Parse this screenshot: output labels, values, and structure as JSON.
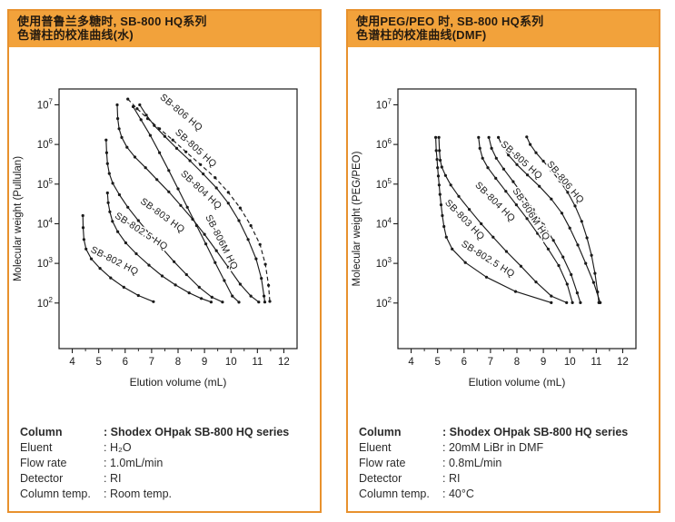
{
  "panels": [
    {
      "title_line1": "使用普鲁兰多糖时, SB-800 HQ系列",
      "title_line2": "色谱柱的校准曲线(水)",
      "specs": {
        "rows": [
          {
            "label": "Column",
            "value": "Shodex OHpak SB-800 HQ series",
            "bold": true
          },
          {
            "label": "Eluent",
            "value": "H₂O",
            "bold": false
          },
          {
            "label": "Flow rate",
            "value": "1.0mL/min",
            "bold": false
          },
          {
            "label": "Detector",
            "value": "RI",
            "bold": false
          },
          {
            "label": "Column temp.",
            "value": "Room temp.",
            "bold": false
          }
        ]
      }
    },
    {
      "title_line1": "使用PEG/PEO 时, SB-800 HQ系列",
      "title_line2": "色谱柱的校准曲线(DMF)",
      "specs": {
        "rows": [
          {
            "label": "Column",
            "value": "Shodex OHpak SB-800 HQ series",
            "bold": true
          },
          {
            "label": "Eluent",
            "value": "20mM LiBr in DMF",
            "bold": false
          },
          {
            "label": "Flow rate",
            "value": "0.8mL/min",
            "bold": false
          },
          {
            "label": "Detector",
            "value": "RI",
            "bold": false
          },
          {
            "label": "Column temp.",
            "value": "40°C",
            "bold": false
          }
        ]
      }
    }
  ],
  "colors": {
    "panel_border": "#e8912d",
    "header_bg": "#f2a23b",
    "ink": "#1a1a1a"
  },
  "chart_data": [
    {
      "type": "line",
      "title": "Calibration curves of SB-800 HQ series (Pullulan, water)",
      "xlabel": "Elution volume (mL)",
      "ylabel": "Molecular weight (Pullulan)",
      "xlim": [
        3.5,
        12.5
      ],
      "x_ticks": [
        4,
        5,
        6,
        7,
        8,
        9,
        10,
        11,
        12
      ],
      "x_minor_step": 0.5,
      "ylog_lim": [
        0.85,
        7.4
      ],
      "y_tick_exponents": [
        2,
        3,
        4,
        5,
        6,
        7
      ],
      "grid": false,
      "series": [
        {
          "name": "SB-802 HQ",
          "dashed": false,
          "label_x": 5.55,
          "label_logy": 3.0,
          "label_rot": 27,
          "points": [
            [
              4.4,
              16000
            ],
            [
              4.41,
              8000
            ],
            [
              4.44,
              4000
            ],
            [
              4.52,
              2300
            ],
            [
              4.72,
              1300
            ],
            [
              5.05,
              750
            ],
            [
              5.45,
              430
            ],
            [
              5.95,
              250
            ],
            [
              6.5,
              155
            ],
            [
              7.07,
              108
            ]
          ]
        },
        {
          "name": "SB-802.5 HQ",
          "dashed": false,
          "label_x": 6.55,
          "label_logy": 3.75,
          "label_rot": 33,
          "points": [
            [
              5.33,
              60000
            ],
            [
              5.36,
              34000
            ],
            [
              5.42,
              20000
            ],
            [
              5.52,
              11500
            ],
            [
              5.72,
              6300
            ],
            [
              6.02,
              3300
            ],
            [
              6.42,
              1750
            ],
            [
              6.9,
              900
            ],
            [
              7.4,
              480
            ],
            [
              7.9,
              285
            ],
            [
              8.42,
              180
            ],
            [
              8.88,
              130
            ],
            [
              9.25,
              106
            ]
          ]
        },
        {
          "name": "SB-803 HQ",
          "dashed": false,
          "label_x": 7.35,
          "label_logy": 4.15,
          "label_rot": 36,
          "points": [
            [
              5.28,
              1300000
            ],
            [
              5.3,
              620000
            ],
            [
              5.33,
              330000
            ],
            [
              5.4,
              185000
            ],
            [
              5.53,
              105000
            ],
            [
              5.78,
              54000
            ],
            [
              6.1,
              26000
            ],
            [
              6.5,
              12000
            ],
            [
              6.95,
              5300
            ],
            [
              7.4,
              2400
            ],
            [
              7.85,
              1100
            ],
            [
              8.32,
              520
            ],
            [
              8.8,
              250
            ],
            [
              9.28,
              140
            ],
            [
              9.68,
              106
            ]
          ]
        },
        {
          "name": "SB-804 HQ",
          "dashed": false,
          "label_x": 8.8,
          "label_logy": 4.8,
          "label_rot": 43,
          "points": [
            [
              5.7,
              10000000
            ],
            [
              5.72,
              4500000
            ],
            [
              5.77,
              2500000
            ],
            [
              5.87,
              1500000
            ],
            [
              6.07,
              850000
            ],
            [
              6.37,
              480000
            ],
            [
              6.77,
              260000
            ],
            [
              7.2,
              130000
            ],
            [
              7.65,
              64000
            ],
            [
              8.1,
              29000
            ],
            [
              8.55,
              13000
            ],
            [
              9.0,
              5400
            ],
            [
              9.45,
              2100
            ],
            [
              9.9,
              800
            ],
            [
              10.35,
              300
            ],
            [
              10.75,
              150
            ],
            [
              11.05,
              106
            ]
          ]
        },
        {
          "name": "SB-805 HQ",
          "dashed": false,
          "label_x": 8.6,
          "label_logy": 5.85,
          "label_rot": 42,
          "points": [
            [
              6.55,
              10000000
            ],
            [
              6.8,
              5500000
            ],
            [
              7.1,
              3000000
            ],
            [
              7.5,
              1600000
            ],
            [
              7.95,
              800000
            ],
            [
              8.45,
              390000
            ],
            [
              8.95,
              180000
            ],
            [
              9.45,
              80000
            ],
            [
              9.9,
              33000
            ],
            [
              10.3,
              12000
            ],
            [
              10.65,
              4000
            ],
            [
              10.95,
              1300
            ],
            [
              11.15,
              420
            ],
            [
              11.25,
              150
            ],
            [
              11.28,
              106
            ]
          ]
        },
        {
          "name": "SB-806 HQ",
          "dashed": true,
          "label_x": 8.05,
          "label_logy": 6.75,
          "label_rot": 40,
          "points": [
            [
              6.1,
              14000000
            ],
            [
              6.45,
              8000000
            ],
            [
              6.85,
              4500000
            ],
            [
              7.3,
              2500000
            ],
            [
              7.8,
              1300000
            ],
            [
              8.3,
              650000
            ],
            [
              8.85,
              310000
            ],
            [
              9.4,
              145000
            ],
            [
              9.9,
              62000
            ],
            [
              10.35,
              25000
            ],
            [
              10.75,
              9000
            ],
            [
              11.1,
              3000
            ],
            [
              11.3,
              950
            ],
            [
              11.42,
              280
            ],
            [
              11.47,
              110
            ]
          ]
        },
        {
          "name": "SB-806M HQ",
          "dashed": false,
          "label_x": 9.55,
          "label_logy": 3.5,
          "label_rot": 63,
          "points": [
            [
              6.3,
              9000000
            ],
            [
              6.6,
              4200000
            ],
            [
              6.95,
              1700000
            ],
            [
              7.3,
              620000
            ],
            [
              7.65,
              220000
            ],
            [
              8.0,
              76000
            ],
            [
              8.35,
              26000
            ],
            [
              8.7,
              9000
            ],
            [
              9.05,
              3100
            ],
            [
              9.4,
              1050
            ],
            [
              9.75,
              370
            ],
            [
              10.05,
              150
            ],
            [
              10.3,
              105
            ]
          ]
        }
      ]
    },
    {
      "type": "line",
      "title": "Calibration curves of SB-800 HQ series (PEG/PEO, DMF)",
      "xlabel": "Elution volume (mL)",
      "ylabel": "Molecular weight (PEG/PEO)",
      "xlim": [
        3.5,
        12.5
      ],
      "x_ticks": [
        4,
        5,
        6,
        7,
        8,
        9,
        10,
        11,
        12
      ],
      "x_minor_step": 0.5,
      "ylog_lim": [
        0.85,
        7.4
      ],
      "y_tick_exponents": [
        2,
        3,
        4,
        5,
        6,
        7
      ],
      "grid": false,
      "series": [
        {
          "name": "SB-802.5 HQ",
          "dashed": false,
          "label_x": 6.85,
          "label_logy": 3.05,
          "label_rot": 32,
          "points": [
            [
              4.93,
              1500000
            ],
            [
              4.95,
              700000
            ],
            [
              4.98,
              420000
            ],
            [
              5.0,
              260000
            ],
            [
              5.03,
              160000
            ],
            [
              5.06,
              95000
            ],
            [
              5.09,
              55000
            ],
            [
              5.13,
              30000
            ],
            [
              5.18,
              16000
            ],
            [
              5.24,
              8500
            ],
            [
              5.33,
              4600
            ],
            [
              5.55,
              2300
            ],
            [
              6.05,
              1050
            ],
            [
              6.85,
              450
            ],
            [
              7.95,
              195
            ],
            [
              9.3,
              102
            ]
          ]
        },
        {
          "name": "SB-803 HQ",
          "dashed": false,
          "label_x": 5.95,
          "label_logy": 4.05,
          "label_rot": 46,
          "points": [
            [
              5.05,
              1500000
            ],
            [
              5.07,
              700000
            ],
            [
              5.1,
              400000
            ],
            [
              5.16,
              270000
            ],
            [
              5.3,
              165000
            ],
            [
              5.5,
              95000
            ],
            [
              5.8,
              49000
            ],
            [
              6.2,
              23000
            ],
            [
              6.65,
              10000
            ],
            [
              7.1,
              4600
            ],
            [
              7.6,
              2000
            ],
            [
              8.15,
              850
            ],
            [
              8.72,
              340
            ],
            [
              9.3,
              150
            ],
            [
              9.88,
              102
            ]
          ]
        },
        {
          "name": "SB-804 HQ",
          "dashed": false,
          "label_x": 7.1,
          "label_logy": 4.5,
          "label_rot": 45,
          "points": [
            [
              6.55,
              1500000
            ],
            [
              6.6,
              800000
            ],
            [
              6.7,
              450000
            ],
            [
              6.9,
              260000
            ],
            [
              7.2,
              140000
            ],
            [
              7.58,
              66000
            ],
            [
              7.98,
              30000
            ],
            [
              8.38,
              13500
            ],
            [
              8.78,
              5700
            ],
            [
              9.18,
              2300
            ],
            [
              9.58,
              880
            ],
            [
              9.9,
              300
            ],
            [
              10.1,
              102
            ]
          ]
        },
        {
          "name": "SB-806M HQ",
          "dashed": false,
          "label_x": 8.45,
          "label_logy": 4.2,
          "label_rot": 57,
          "points": [
            [
              6.94,
              1500000
            ],
            [
              7.04,
              800000
            ],
            [
              7.22,
              450000
            ],
            [
              7.5,
              240000
            ],
            [
              7.86,
              115000
            ],
            [
              8.24,
              52000
            ],
            [
              8.62,
              23000
            ],
            [
              9.0,
              9500
            ],
            [
              9.38,
              3800
            ],
            [
              9.74,
              1450
            ],
            [
              10.05,
              520
            ],
            [
              10.28,
              180
            ],
            [
              10.4,
              102
            ]
          ]
        },
        {
          "name": "SB-805 HQ",
          "dashed": false,
          "label_x": 8.1,
          "label_logy": 5.55,
          "label_rot": 42,
          "points": [
            [
              7.3,
              1500000
            ],
            [
              7.45,
              900000
            ],
            [
              7.68,
              540000
            ],
            [
              8.0,
              310000
            ],
            [
              8.4,
              170000
            ],
            [
              8.85,
              88000
            ],
            [
              9.3,
              42000
            ],
            [
              9.7,
              18500
            ],
            [
              10.0,
              7800
            ],
            [
              10.3,
              2900
            ],
            [
              10.6,
              1000
            ],
            [
              10.9,
              330
            ],
            [
              11.15,
              102
            ]
          ]
        },
        {
          "name": "SB-806 HQ",
          "dashed": false,
          "label_x": 9.75,
          "label_logy": 5.0,
          "label_rot": 50,
          "points": [
            [
              8.37,
              1550000
            ],
            [
              8.5,
              1000000
            ],
            [
              8.72,
              620000
            ],
            [
              9.0,
              380000
            ],
            [
              9.3,
              220000
            ],
            [
              9.62,
              120000
            ],
            [
              9.92,
              62000
            ],
            [
              10.2,
              28000
            ],
            [
              10.45,
              11500
            ],
            [
              10.65,
              4400
            ],
            [
              10.82,
              1600
            ],
            [
              10.95,
              560
            ],
            [
              11.05,
              190
            ],
            [
              11.1,
              102
            ]
          ]
        }
      ]
    }
  ]
}
